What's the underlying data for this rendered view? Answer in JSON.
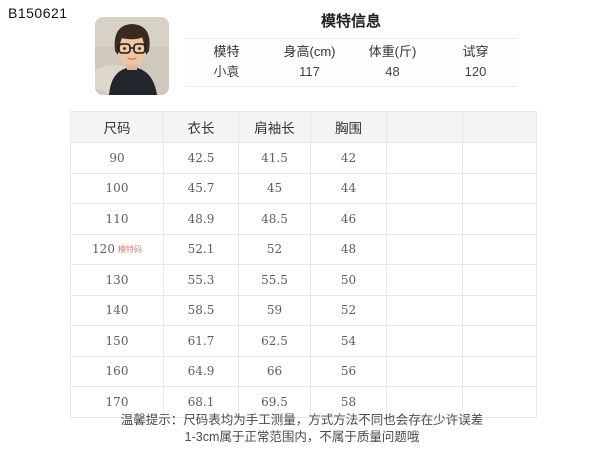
{
  "page": {
    "code": "B150621"
  },
  "model_info": {
    "title": "模特信息",
    "headers": [
      "模特",
      "身高(cm)",
      "体重(斤)",
      "试穿"
    ],
    "values": [
      "小袁",
      "117",
      "48",
      "120"
    ],
    "photo": "child-model-photo"
  },
  "size_table": {
    "headers": [
      "尺码",
      "衣长",
      "肩袖长",
      "胸围",
      "",
      ""
    ],
    "model_size_tag": "模特码",
    "model_size_row": "120",
    "rows": [
      {
        "size": "90",
        "length": "42.5",
        "shoulder_sleeve": "41.5",
        "chest": "42"
      },
      {
        "size": "100",
        "length": "45.7",
        "shoulder_sleeve": "45",
        "chest": "44"
      },
      {
        "size": "110",
        "length": "48.9",
        "shoulder_sleeve": "48.5",
        "chest": "46"
      },
      {
        "size": "120",
        "length": "52.1",
        "shoulder_sleeve": "52",
        "chest": "48"
      },
      {
        "size": "130",
        "length": "55.3",
        "shoulder_sleeve": "55.5",
        "chest": "50"
      },
      {
        "size": "140",
        "length": "58.5",
        "shoulder_sleeve": "59",
        "chest": "52"
      },
      {
        "size": "150",
        "length": "61.7",
        "shoulder_sleeve": "62.5",
        "chest": "54"
      },
      {
        "size": "160",
        "length": "64.9",
        "shoulder_sleeve": "66",
        "chest": "56"
      },
      {
        "size": "170",
        "length": "68.1",
        "shoulder_sleeve": "69.5",
        "chest": "58"
      }
    ]
  },
  "footer_note": {
    "line1": "温馨提示：尺码表均为手工测量，方式方法不同也会存在少许误差",
    "line2": "1-3cm属于正常范围内，不属于质量问题哦"
  },
  "colors": {
    "tag_red": "#e57777",
    "table_border": "#e8e8e8",
    "header_bg": "#f4f4f4",
    "text_dark": "#333333",
    "text_gray": "#5e5e5e"
  }
}
